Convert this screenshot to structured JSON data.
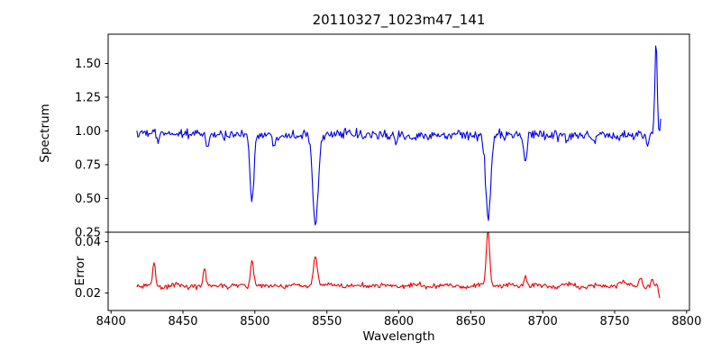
{
  "figure": {
    "background": "#ffffff"
  },
  "chart_data": {
    "type": "line",
    "title": "20110327_1023m47_141",
    "xlabel": "Wavelength",
    "xlim": [
      8398,
      8802
    ],
    "x_ticks": [
      {
        "v": 8400,
        "label": "8400"
      },
      {
        "v": 8450,
        "label": "8450"
      },
      {
        "v": 8500,
        "label": "8500"
      },
      {
        "v": 8550,
        "label": "8550"
      },
      {
        "v": 8600,
        "label": "8600"
      },
      {
        "v": 8650,
        "label": "8650"
      },
      {
        "v": 8700,
        "label": "8700"
      },
      {
        "v": 8750,
        "label": "8750"
      },
      {
        "v": 8800,
        "label": "8800"
      }
    ],
    "panels": [
      {
        "ylabel": "Spectrum",
        "ylim": [
          0.25,
          1.7167
        ],
        "color": "#0000ee",
        "ticks": [
          {
            "v": 0.25,
            "label": "0.25"
          },
          {
            "v": 0.5,
            "label": "0.50"
          },
          {
            "v": 0.75,
            "label": "0.75"
          },
          {
            "v": 1.0,
            "label": "1.00"
          },
          {
            "v": 1.25,
            "label": "1.25"
          },
          {
            "v": 1.5,
            "label": "1.50"
          }
        ],
        "series": {
          "name": "spectrum",
          "seed": 1234,
          "x_start": 8418,
          "x_end": 8782.5,
          "step": 0.7,
          "baseline": 0.972,
          "noise_sigma": 0.018,
          "wiggles": [
            {
              "amp": 0.006,
              "freq": 0.05,
              "phase": 0.0
            },
            {
              "amp": 0.005,
              "freq": 0.013,
              "phase": 1.3
            }
          ],
          "dips": [
            {
              "center": 8433.0,
              "depth": 0.07,
              "sigma": 0.9
            },
            {
              "center": 8467.0,
              "depth": 0.1,
              "sigma": 1.0
            },
            {
              "center": 8498.0,
              "depth": 0.485,
              "sigma": 1.3
            },
            {
              "center": 8513.0,
              "depth": 0.08,
              "sigma": 0.9
            },
            {
              "center": 8542.1,
              "depth": 0.645,
              "sigma": 1.9
            },
            {
              "center": 8575.0,
              "depth": 0.05,
              "sigma": 0.9
            },
            {
              "center": 8598.0,
              "depth": 0.05,
              "sigma": 0.9
            },
            {
              "center": 8662.1,
              "depth": 0.625,
              "sigma": 1.7
            },
            {
              "center": 8688.0,
              "depth": 0.235,
              "sigma": 1.1
            },
            {
              "center": 8717.0,
              "depth": 0.06,
              "sigma": 0.9
            },
            {
              "center": 8736.0,
              "depth": 0.05,
              "sigma": 0.9
            },
            {
              "center": 8773.0,
              "depth": 0.09,
              "sigma": 0.8
            }
          ],
          "peaks": [
            {
              "center": 8778.8,
              "height": 0.7,
              "sigma": 0.8
            },
            {
              "center": 8782.3,
              "height": 0.14,
              "sigma": 0.6
            }
          ]
        }
      },
      {
        "ylabel": "Error",
        "ylim": [
          0.0132,
          0.0437
        ],
        "color": "#ee0000",
        "ticks": [
          {
            "v": 0.02,
            "label": "0.02"
          },
          {
            "v": 0.04,
            "label": "0.04"
          }
        ],
        "series": {
          "name": "error",
          "seed": 77,
          "x_start": 8418,
          "x_end": 8782,
          "step": 0.7,
          "baseline": 0.0228,
          "noise_sigma": 0.0005,
          "wiggles": [
            {
              "amp": 0.0004,
              "freq": 0.3,
              "phase": 0.5
            }
          ],
          "peaks": [
            {
              "center": 8430.0,
              "height": 0.0092,
              "sigma": 1.0
            },
            {
              "center": 8465.0,
              "height": 0.006,
              "sigma": 0.9
            },
            {
              "center": 8498.0,
              "height": 0.0098,
              "sigma": 1.1
            },
            {
              "center": 8542.0,
              "height": 0.012,
              "sigma": 1.4
            },
            {
              "center": 8662.0,
              "height": 0.0212,
              "sigma": 1.2
            },
            {
              "center": 8688.0,
              "height": 0.0035,
              "sigma": 1.0
            },
            {
              "center": 8755.0,
              "height": 0.002,
              "sigma": 2.0
            },
            {
              "center": 8768.0,
              "height": 0.0032,
              "sigma": 1.0
            },
            {
              "center": 8776.0,
              "height": 0.003,
              "sigma": 0.8
            }
          ],
          "dips": [
            {
              "center": 8781.5,
              "depth": 0.005,
              "sigma": 0.8
            }
          ]
        }
      }
    ]
  }
}
